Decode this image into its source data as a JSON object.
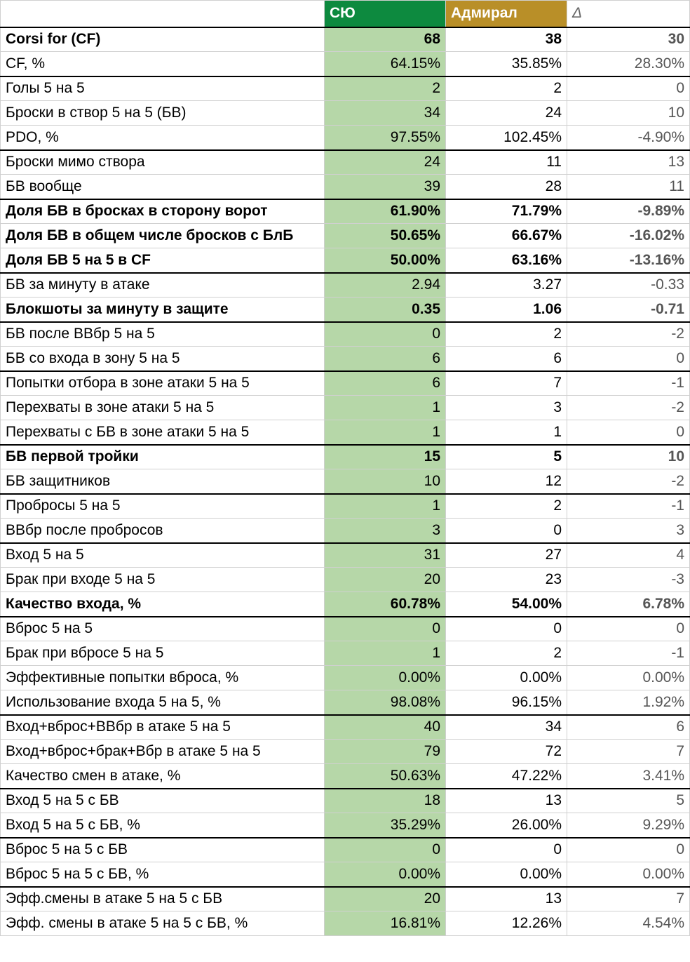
{
  "table": {
    "header": [
      "",
      "СЮ",
      "Адмирал",
      "Δ"
    ],
    "rows": [
      [
        "Corsi for (CF)",
        "68",
        "38",
        "30"
      ],
      [
        "CF, %",
        "64.15%",
        "35.85%",
        "28.30%"
      ],
      [
        "Голы 5 на 5",
        "2",
        "2",
        "0"
      ],
      [
        "Броски в створ 5 на 5 (БВ)",
        "34",
        "24",
        "10"
      ],
      [
        "PDO, %",
        "97.55%",
        "102.45%",
        "-4.90%"
      ],
      [
        "Броски мимо створа",
        "24",
        "11",
        "13"
      ],
      [
        "БВ вообще",
        "39",
        "28",
        "11"
      ],
      [
        "Доля БВ в бросках в сторону ворот",
        "61.90%",
        "71.79%",
        "-9.89%"
      ],
      [
        "Доля БВ в общем числе бросков с БлБ",
        "50.65%",
        "66.67%",
        "-16.02%"
      ],
      [
        "Доля БВ 5 на 5 в CF",
        "50.00%",
        "63.16%",
        "-13.16%"
      ],
      [
        "БВ за минуту в атаке",
        "2.94",
        "3.27",
        "-0.33"
      ],
      [
        "Блокшоты за минуту в защите",
        "0.35",
        "1.06",
        "-0.71"
      ],
      [
        "БВ после ВВбр 5 на 5",
        "0",
        "2",
        "-2"
      ],
      [
        "БВ со входа в зону 5 на 5",
        "6",
        "6",
        "0"
      ],
      [
        "Попытки отбора в зоне атаки 5 на 5",
        "6",
        "7",
        "-1"
      ],
      [
        "Перехваты в зоне атаки 5 на 5",
        "1",
        "3",
        "-2"
      ],
      [
        "Перехваты с БВ в зоне атаки 5 на 5",
        "1",
        "1",
        "0"
      ],
      [
        "БВ первой тройки",
        "15",
        "5",
        "10"
      ],
      [
        "БВ защитников",
        "10",
        "12",
        "-2"
      ],
      [
        "Пробросы 5 на 5",
        "1",
        "2",
        "-1"
      ],
      [
        "ВВбр после пробросов",
        "3",
        "0",
        "3"
      ],
      [
        "Вход 5 на 5",
        "31",
        "27",
        "4"
      ],
      [
        "Брак при входе 5 на 5",
        "20",
        "23",
        "-3"
      ],
      [
        "Качество входа, %",
        "60.78%",
        "54.00%",
        "6.78%"
      ],
      [
        "Вброс 5 на 5",
        "0",
        "0",
        "0"
      ],
      [
        "Брак при вбросе 5 на 5",
        "1",
        "2",
        "-1"
      ],
      [
        "Эффективные попытки вброса, %",
        "0.00%",
        "0.00%",
        "0.00%"
      ],
      [
        "Использование входа 5 на 5, %",
        "98.08%",
        "96.15%",
        "1.92%"
      ],
      [
        "Вход+вброс+ВВбр в атаке 5 на 5",
        "40",
        "34",
        "6"
      ],
      [
        "Вход+вброс+брак+Вбр в атаке 5 на 5",
        "79",
        "72",
        "7"
      ],
      [
        "Качество смен в атаке, %",
        "50.63%",
        "47.22%",
        "3.41%"
      ],
      [
        "Вход 5 на 5 с БВ",
        "18",
        "13",
        "5"
      ],
      [
        "Вход 5 на 5 с БВ, %",
        "35.29%",
        "26.00%",
        "9.29%"
      ],
      [
        "Вброс 5 на 5 с БВ",
        "0",
        "0",
        "0"
      ],
      [
        "Вброс 5 на 5 с БВ, %",
        "0.00%",
        "0.00%",
        "0.00%"
      ],
      [
        "Эфф.смены в атаке 5 на 5 с БВ",
        "20",
        "13",
        "7"
      ],
      [
        "Эфф. смены в атаке 5 на 5 с БВ, %",
        "16.81%",
        "12.26%",
        "4.54%"
      ]
    ]
  }
}
